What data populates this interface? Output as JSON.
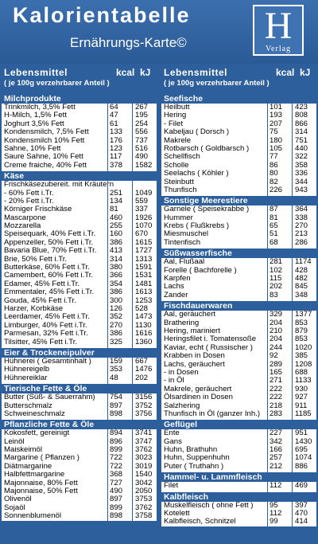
{
  "header": {
    "title": "Kalorientabelle",
    "subtitle": "Ernährungs-Karte©",
    "logo_letter": "H",
    "logo_text": "Verlag"
  },
  "columns": {
    "item": "Lebensmittel",
    "kcal": "kcal",
    "kj": "kJ",
    "sub": "( je 100g verzehrbarer Anteil )"
  },
  "left": [
    {
      "section": "Milchprodukte",
      "rows": [
        [
          "Trinkmilch, 3,5% Fett",
          "64",
          "267"
        ],
        [
          "H-Milch, 1,5% Fett",
          "47",
          "195"
        ],
        [
          "Joghurt 3,5% Fett",
          "61",
          "254"
        ],
        [
          "Kondensmilch, 7,5% Fett",
          "133",
          "556"
        ],
        [
          "Kondensmilch 10% Fett",
          "176",
          "737"
        ],
        [
          "Sahne, 10% Fett",
          "123",
          "516"
        ],
        [
          "Saure Sahne, 10% Fett",
          "117",
          "490"
        ],
        [
          "Creme fraiche, 40% Fett",
          "378",
          "1582"
        ]
      ]
    },
    {
      "section": "Käse",
      "rows": [
        [
          "Frischkäsezubereit. mit Kräutern",
          "",
          ""
        ],
        [
          "- 60% Fett i.Tr.",
          "251",
          "1049"
        ],
        [
          "- 20% Fett i.Tr.",
          "134",
          "559"
        ],
        [
          "Körniger Frischkäse",
          "81",
          "337"
        ],
        [
          "Mascarpone",
          "460",
          "1926"
        ],
        [
          "Mozzarella",
          "255",
          "1070"
        ],
        [
          "Speisequark, 40% Fett i.Tr.",
          "160",
          "670"
        ],
        [
          "Appenzeller, 50% Fett i.Tr.",
          "386",
          "1615"
        ],
        [
          "Bavaria Blue, 70% Fett i.Tr.",
          "413",
          "1727"
        ],
        [
          "Brie, 50% Fett i.Tr.",
          "314",
          "1313"
        ],
        [
          "Butterkäse, 60% Fett i.Tr.",
          "380",
          "1591"
        ],
        [
          "Camembert, 60% Fett i.Tr.",
          "366",
          "1531"
        ],
        [
          "Edamer, 45% Fett i.Tr.",
          "354",
          "1481"
        ],
        [
          "Emmentaler, 45% Fett i.Tr.",
          "386",
          "1613"
        ],
        [
          "Gouda, 45% Fett i.Tr.",
          "300",
          "1253"
        ],
        [
          "Harzer, Korbkäse",
          "126",
          "528"
        ],
        [
          "Leerdamer, 45% Fett i.Tr.",
          "352",
          "1473"
        ],
        [
          "Limburger, 40% Fett i.Tr.",
          "270",
          "1130"
        ],
        [
          "Parmesan, 32% Fett i.Tr.",
          "386",
          "1616"
        ],
        [
          "Tilsitter, 45% Fett i.Tr.",
          "325",
          "1360"
        ]
      ]
    },
    {
      "section": "Eier & Trockeneipulver",
      "rows": [
        [
          "Hühnerei ( Gesamtinhalt )",
          "159",
          "667"
        ],
        [
          "Hühnereigelb",
          "353",
          "1476"
        ],
        [
          "Hühnereiklar",
          "48",
          "202"
        ]
      ]
    },
    {
      "section": "Tierische Fette & Öle",
      "rows": [
        [
          "Butter (Süß- & Sauerrahm)",
          "754",
          "3156"
        ],
        [
          "Butterschmalz",
          "897",
          "3752"
        ],
        [
          "Schweineschmalz",
          "898",
          "3756"
        ]
      ]
    },
    {
      "section": "Pflanzliche Fette & Öle",
      "rows": [
        [
          "Kokosfett, gereinigt",
          "894",
          "3741"
        ],
        [
          "Leinöl",
          "896",
          "3747"
        ],
        [
          "Maiskeimöl",
          "899",
          "3762"
        ],
        [
          "Margarine ( Pflanzen )",
          "722",
          "3023"
        ],
        [
          "Diätmargarine",
          "722",
          "3019"
        ],
        [
          "Halbfettmargarine",
          "368",
          "1540"
        ],
        [
          "Majonnaise, 80% Fett",
          "727",
          "3042"
        ],
        [
          "Majonnaise, 50% Fett",
          "490",
          "2050"
        ],
        [
          "Olivenöl",
          "897",
          "3753"
        ],
        [
          "Sojaöl",
          "899",
          "3762"
        ],
        [
          "Sonnenblumenöl",
          "898",
          "3758"
        ]
      ]
    }
  ],
  "right": [
    {
      "section": "Seefische",
      "rows": [
        [
          "Heilbutt",
          "101",
          "423"
        ],
        [
          "Hering",
          "193",
          "808"
        ],
        [
          "- Filet",
          "207",
          "866"
        ],
        [
          "Kabeljau ( Dorsch )",
          "75",
          "314"
        ],
        [
          "Makrele",
          "180",
          "751"
        ],
        [
          "Rotbarsch ( Goldbarsch )",
          "105",
          "440"
        ],
        [
          "Schellfisch",
          "77",
          "322"
        ],
        [
          "Scholle",
          "86",
          "358"
        ],
        [
          "Seelachs ( Köhler )",
          "80",
          "336"
        ],
        [
          "Steinbutt",
          "82",
          "344"
        ],
        [
          "Thunfisch",
          "226",
          "943"
        ]
      ]
    },
    {
      "section": "Sonstige Meerestiere",
      "rows": [
        [
          "Garnele ( Speisekrabbe )",
          "87",
          "364"
        ],
        [
          "Hummer",
          "81",
          "338"
        ],
        [
          "Krebs ( Flußkrebs )",
          "65",
          "270"
        ],
        [
          "Miesmuschel",
          "51",
          "213"
        ],
        [
          "Tintenfisch",
          "68",
          "286"
        ]
      ]
    },
    {
      "section": "Süßwasserfische",
      "rows": [
        [
          "Aal, Flußaal",
          "281",
          "1174"
        ],
        [
          "Forelle ( Bachforelle )",
          "102",
          "428"
        ],
        [
          "Karpfen",
          "115",
          "482"
        ],
        [
          "Lachs",
          "202",
          "845"
        ],
        [
          "Zander",
          "83",
          "348"
        ]
      ]
    },
    {
      "section": "Fischdauerwaren",
      "rows": [
        [
          "Aal, geräuchert",
          "329",
          "1377"
        ],
        [
          "Brathering",
          "204",
          "853"
        ],
        [
          "Hering, mariniert",
          "210",
          "879"
        ],
        [
          "Heringsfilet i. Tomatensoße",
          "204",
          "853"
        ],
        [
          "Kaviar, echt ( Russischer )",
          "244",
          "1020"
        ],
        [
          "Krabben in Dosen",
          "92",
          "385"
        ],
        [
          "Lachs, geräuchert",
          "289",
          "1208"
        ],
        [
          "- in Dosen",
          "165",
          "688"
        ],
        [
          "- in Öl",
          "271",
          "1133"
        ],
        [
          "Makrele, geräuchert",
          "222",
          "930"
        ],
        [
          "Ölsardinen in Dosen",
          "222",
          "927"
        ],
        [
          "Salzhering",
          "218",
          "911"
        ],
        [
          "Thunfisch in Öl (ganzer Inh.)",
          "283",
          "1185"
        ]
      ]
    },
    {
      "section": "Geflügel",
      "rows": [
        [
          "Ente",
          "227",
          "951"
        ],
        [
          "Gans",
          "342",
          "1430"
        ],
        [
          "Huhn, Brathuhn",
          "166",
          "695"
        ],
        [
          "Huhn, Suppenhuhn",
          "257",
          "1074"
        ],
        [
          "Puter ( Truthahn )",
          "212",
          "886"
        ]
      ]
    },
    {
      "section": "Hammel- u. Lammfleisch",
      "rows": [
        [
          "Filet",
          "112",
          "469"
        ]
      ]
    },
    {
      "section": "Kalbfleisch",
      "rows": [
        [
          "Muskelfleisch ( ohne Fett )",
          "95",
          "397"
        ],
        [
          "Kotelett",
          "112",
          "470"
        ],
        [
          "Kalbfleisch, Schnitzel",
          "99",
          "414"
        ]
      ]
    }
  ]
}
